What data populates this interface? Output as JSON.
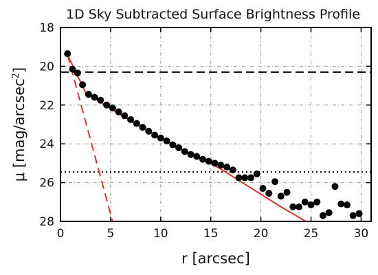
{
  "chart_data": {
    "type": "scatter",
    "title": "1D Sky Subtracted Surface Brightness Profile",
    "xlabel": "r [arcsec]",
    "ylabel": {
      "main": "μ [mag/arcsec",
      "sup": "2",
      "close": "]"
    },
    "xlim": [
      0,
      31
    ],
    "ylim": [
      28,
      18
    ],
    "y_inverted": true,
    "grid": true,
    "x_ticks": [
      0,
      5,
      10,
      15,
      20,
      25,
      30
    ],
    "y_ticks": [
      18,
      20,
      22,
      24,
      26,
      28
    ],
    "series": [
      {
        "kind": "points",
        "marker": "filled-circle",
        "color": "#000000",
        "x": [
          0.7,
          1.2,
          1.7,
          2.2,
          2.8,
          3.4,
          4.0,
          4.6,
          5.2,
          5.8,
          6.4,
          7.0,
          7.6,
          8.2,
          8.8,
          9.4,
          10.0,
          10.6,
          11.2,
          11.8,
          12.4,
          13.0,
          13.6,
          14.2,
          14.8,
          15.4,
          16.0,
          16.6,
          17.2,
          17.8,
          18.4,
          19.0,
          19.6,
          20.2,
          20.8,
          21.4,
          22.0,
          22.6,
          23.2,
          23.8,
          24.4,
          25.0,
          25.6,
          26.2,
          26.8,
          27.4,
          28.0,
          28.6,
          29.2,
          29.8
        ],
        "y": [
          19.35,
          20.15,
          20.35,
          20.95,
          21.45,
          21.6,
          21.75,
          22.0,
          22.15,
          22.35,
          22.55,
          22.75,
          22.95,
          23.15,
          23.35,
          23.55,
          23.7,
          23.85,
          24.05,
          24.2,
          24.4,
          24.55,
          24.65,
          24.8,
          24.9,
          25.0,
          25.1,
          25.2,
          25.35,
          25.75,
          25.75,
          25.75,
          25.55,
          26.3,
          26.55,
          25.95,
          26.7,
          26.5,
          27.25,
          27.25,
          27.0,
          27.15,
          27.0,
          27.7,
          27.55,
          26.2,
          27.1,
          27.15,
          27.7,
          27.6
        ]
      },
      {
        "kind": "line",
        "style": "solid",
        "color": "#e8302a",
        "x": [
          0.7,
          2.5,
          4.0,
          6.0,
          8.0,
          10.0,
          12.0,
          14.0,
          16.0,
          18.0,
          20.0,
          22.0,
          24.5
        ],
        "y": [
          19.4,
          21.35,
          21.85,
          22.5,
          23.1,
          23.7,
          24.25,
          24.75,
          25.3,
          25.95,
          26.6,
          27.25,
          28.1
        ]
      },
      {
        "kind": "line",
        "style": "dashed",
        "color": "#e8302a",
        "x": [
          0.7,
          5.2
        ],
        "y": [
          19.4,
          28.0
        ]
      },
      {
        "kind": "hline",
        "style": "dashed",
        "color": "#000000",
        "y": 20.3
      },
      {
        "kind": "hline",
        "style": "dotted",
        "color": "#000000",
        "y": 25.45
      }
    ]
  }
}
